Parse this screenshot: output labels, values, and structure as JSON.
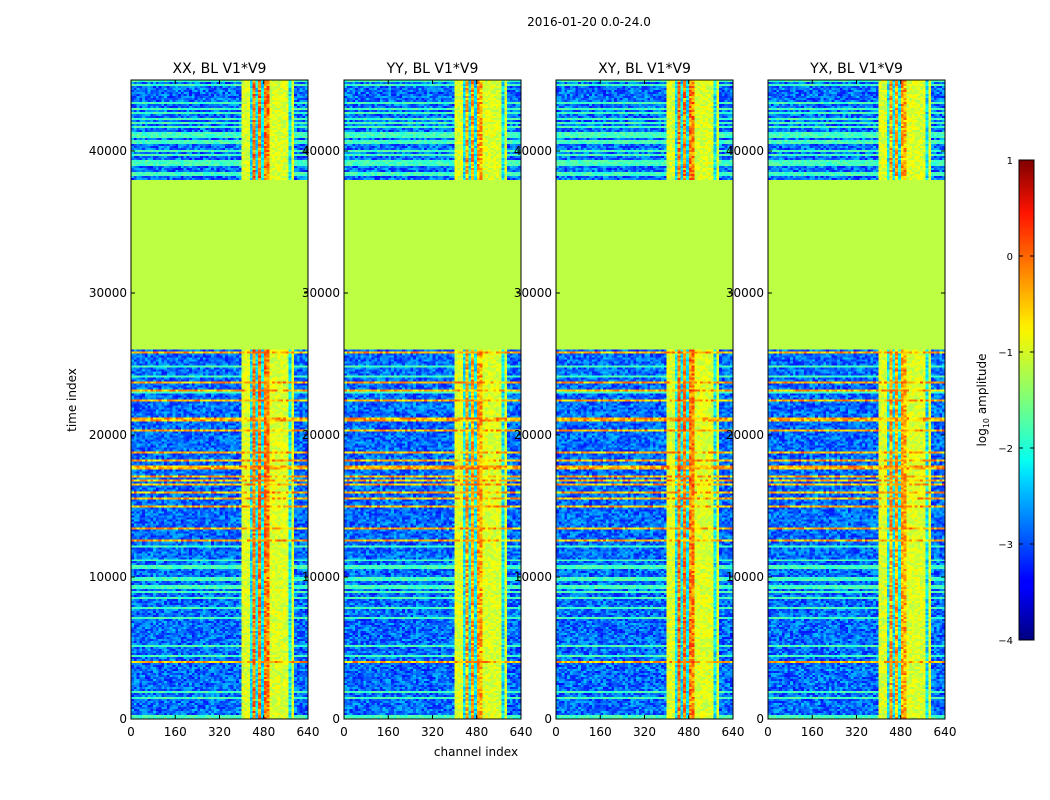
{
  "chart_data": {
    "type": "heatmap",
    "suptitle": "2016-01-20 0.0-24.0",
    "xlabel": "channel index",
    "ylabel": "time index",
    "xlim": [
      0,
      640
    ],
    "ylim": [
      0,
      45000
    ],
    "x_ticks": [
      "0",
      "160",
      "320",
      "480",
      "640"
    ],
    "y_ticks": [
      "0",
      "10000",
      "20000",
      "30000",
      "40000"
    ],
    "x_tick_values": [
      0,
      160,
      320,
      480,
      640
    ],
    "y_tick_values": [
      0,
      10000,
      20000,
      30000,
      40000
    ],
    "panels": [
      {
        "title": "XX, BL V1*V9",
        "pol": "XX"
      },
      {
        "title": "YY, BL V1*V9",
        "pol": "YY"
      },
      {
        "title": "XY, BL V1*V9",
        "pol": "XY"
      },
      {
        "title": "YX, BL V1*V9",
        "pol": "YX"
      }
    ],
    "flagged_time_range": [
      26000,
      38000
    ],
    "flagged_value": -1.2,
    "rfi_channel_range": [
      400,
      590
    ],
    "colorbar": {
      "label": "log10 amplitude",
      "label_main": "log",
      "label_sub": "10",
      "label_rest": " amplitude",
      "vmin": -4,
      "vmax": 1,
      "ticks": [
        "1",
        "0",
        "−1",
        "−2",
        "−3",
        "−4"
      ],
      "tick_values": [
        1,
        0,
        -1,
        -2,
        -3,
        -4
      ],
      "colormap": "jet"
    }
  }
}
